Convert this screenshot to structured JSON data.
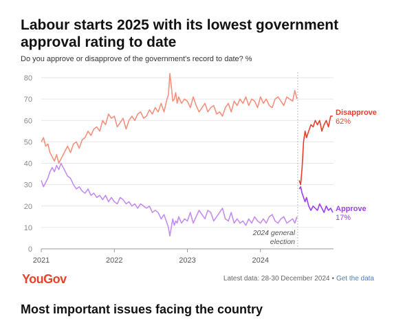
{
  "header": {
    "title": "Labour starts 2025 with its lowest government approval rating to date",
    "subtitle": "Do you approve or disapprove of the government's record to date? %"
  },
  "footer": {
    "brand": "YouGov",
    "latest": "Latest data: 28-30 December 2024",
    "separator": "•",
    "link": "Get the data"
  },
  "next_section": {
    "title": "Most important issues facing the country"
  },
  "colors": {
    "prev_disapprove": "#f4907c",
    "prev_approve": "#c48cf0",
    "disapprove": "#ea3b2c",
    "approve": "#9c3fea",
    "grid": "#e6e6e6",
    "axis_text": "#8a8a8a"
  },
  "chart_data": {
    "type": "line",
    "title": "Labour starts 2025 with its lowest government approval rating to date",
    "subtitle": "Do you approve or disapprove of the government's record to date? %",
    "xlabel": "",
    "ylabel": "",
    "x_range": [
      2021.0,
      2025.0
    ],
    "ylim": [
      0,
      80
    ],
    "y_ticks": [
      0,
      10,
      20,
      30,
      40,
      50,
      60,
      70,
      80
    ],
    "x_ticks": [
      {
        "value": 2021,
        "label": "2021"
      },
      {
        "value": 2022,
        "label": "2022"
      },
      {
        "value": 2023,
        "label": "2023"
      },
      {
        "value": 2024,
        "label": "2024"
      }
    ],
    "grid": true,
    "legend": "inline labels at right end of lines",
    "annotations": [
      {
        "x": 2024.51,
        "lines": [
          "2024 general",
          "election"
        ]
      }
    ],
    "end_labels": [
      {
        "series": "Disapprove",
        "name": "Disapprove",
        "value_label": "62%"
      },
      {
        "series": "Approve",
        "name": "Approve",
        "value_label": "17%"
      }
    ],
    "series": [
      {
        "name": "Disapprove (previous government)",
        "color": "#f4907c",
        "x": [
          2021.0,
          2021.03,
          2021.06,
          2021.09,
          2021.12,
          2021.15,
          2021.18,
          2021.21,
          2021.24,
          2021.27,
          2021.3,
          2021.33,
          2021.36,
          2021.4,
          2021.44,
          2021.48,
          2021.52,
          2021.56,
          2021.6,
          2021.64,
          2021.68,
          2021.72,
          2021.76,
          2021.8,
          2021.84,
          2021.88,
          2021.92,
          2021.96,
          2022.0,
          2022.04,
          2022.08,
          2022.12,
          2022.16,
          2022.2,
          2022.24,
          2022.28,
          2022.32,
          2022.36,
          2022.4,
          2022.44,
          2022.48,
          2022.52,
          2022.56,
          2022.6,
          2022.64,
          2022.68,
          2022.72,
          2022.74,
          2022.76,
          2022.78,
          2022.8,
          2022.82,
          2022.84,
          2022.86,
          2022.88,
          2022.92,
          2022.96,
          2023.0,
          2023.04,
          2023.08,
          2023.12,
          2023.16,
          2023.2,
          2023.24,
          2023.28,
          2023.32,
          2023.36,
          2023.4,
          2023.44,
          2023.48,
          2023.52,
          2023.56,
          2023.6,
          2023.64,
          2023.68,
          2023.72,
          2023.76,
          2023.8,
          2023.84,
          2023.88,
          2023.92,
          2023.96,
          2024.0,
          2024.04,
          2024.08,
          2024.12,
          2024.16,
          2024.2,
          2024.24,
          2024.28,
          2024.32,
          2024.36,
          2024.4,
          2024.44,
          2024.47,
          2024.5
        ],
        "values": [
          50,
          52,
          48,
          49,
          45,
          43,
          41,
          44,
          40,
          42,
          44,
          46,
          48,
          45,
          49,
          50,
          47,
          51,
          52,
          55,
          53,
          56,
          57,
          55,
          60,
          58,
          63,
          61,
          62,
          57,
          59,
          61,
          56,
          60,
          62,
          60,
          63,
          64,
          61,
          62,
          65,
          63,
          66,
          64,
          68,
          64,
          70,
          72,
          82,
          76,
          69,
          70,
          73,
          68,
          71,
          68,
          70,
          69,
          66,
          71,
          67,
          64,
          66,
          68,
          64,
          66,
          67,
          63,
          64,
          62,
          66,
          68,
          64,
          69,
          67,
          70,
          68,
          71,
          67,
          70,
          69,
          66,
          71,
          68,
          70,
          67,
          66,
          70,
          71,
          69,
          67,
          71,
          70,
          69,
          74,
          70
        ]
      },
      {
        "name": "Approve (previous government)",
        "color": "#c48cf0",
        "x": [
          2021.0,
          2021.03,
          2021.06,
          2021.09,
          2021.12,
          2021.15,
          2021.18,
          2021.21,
          2021.24,
          2021.27,
          2021.3,
          2021.33,
          2021.36,
          2021.4,
          2021.44,
          2021.48,
          2021.52,
          2021.56,
          2021.6,
          2021.64,
          2021.68,
          2021.72,
          2021.76,
          2021.8,
          2021.84,
          2021.88,
          2021.92,
          2021.96,
          2022.0,
          2022.04,
          2022.08,
          2022.12,
          2022.16,
          2022.2,
          2022.24,
          2022.28,
          2022.32,
          2022.36,
          2022.4,
          2022.44,
          2022.48,
          2022.52,
          2022.56,
          2022.6,
          2022.64,
          2022.68,
          2022.72,
          2022.74,
          2022.76,
          2022.78,
          2022.8,
          2022.82,
          2022.84,
          2022.86,
          2022.88,
          2022.92,
          2022.96,
          2023.0,
          2023.04,
          2023.08,
          2023.12,
          2023.16,
          2023.2,
          2023.24,
          2023.28,
          2023.32,
          2023.36,
          2023.4,
          2023.44,
          2023.48,
          2023.52,
          2023.56,
          2023.6,
          2023.64,
          2023.68,
          2023.72,
          2023.76,
          2023.8,
          2023.84,
          2023.88,
          2023.92,
          2023.96,
          2024.0,
          2024.04,
          2024.08,
          2024.12,
          2024.16,
          2024.2,
          2024.24,
          2024.28,
          2024.32,
          2024.36,
          2024.4,
          2024.44,
          2024.47,
          2024.5
        ],
        "values": [
          32,
          29,
          31,
          33,
          36,
          38,
          36,
          39,
          37,
          40,
          38,
          36,
          34,
          33,
          30,
          28,
          29,
          27,
          26,
          28,
          25,
          26,
          24,
          25,
          23,
          25,
          22,
          24,
          22,
          21,
          24,
          23,
          21,
          22,
          20,
          21,
          19,
          21,
          20,
          19,
          20,
          17,
          18,
          17,
          14,
          16,
          12,
          10,
          6,
          10,
          14,
          11,
          13,
          12,
          15,
          12,
          14,
          13,
          17,
          12,
          15,
          18,
          16,
          14,
          18,
          17,
          13,
          15,
          17,
          19,
          14,
          13,
          17,
          12,
          14,
          12,
          13,
          11,
          14,
          12,
          15,
          13,
          12,
          14,
          12,
          15,
          16,
          13,
          12,
          14,
          15,
          12,
          13,
          14,
          12,
          15
        ]
      },
      {
        "name": "Disapprove",
        "color": "#ea3b2c",
        "x": [
          2024.53,
          2024.55,
          2024.57,
          2024.59,
          2024.61,
          2024.63,
          2024.66,
          2024.69,
          2024.72,
          2024.75,
          2024.78,
          2024.81,
          2024.84,
          2024.87,
          2024.9,
          2024.93,
          2024.96,
          2024.99
        ],
        "values": [
          32,
          30,
          38,
          50,
          55,
          52,
          55,
          58,
          57,
          60,
          58,
          60,
          55,
          58,
          60,
          57,
          62,
          62
        ]
      },
      {
        "name": "Approve",
        "color": "#9c3fea",
        "x": [
          2024.53,
          2024.55,
          2024.57,
          2024.59,
          2024.61,
          2024.63,
          2024.66,
          2024.69,
          2024.72,
          2024.75,
          2024.78,
          2024.81,
          2024.84,
          2024.87,
          2024.9,
          2024.93,
          2024.96,
          2024.99
        ],
        "values": [
          28,
          29,
          26,
          24,
          22,
          24,
          20,
          18,
          20,
          19,
          18,
          21,
          19,
          17,
          20,
          18,
          19,
          17
        ]
      }
    ]
  }
}
